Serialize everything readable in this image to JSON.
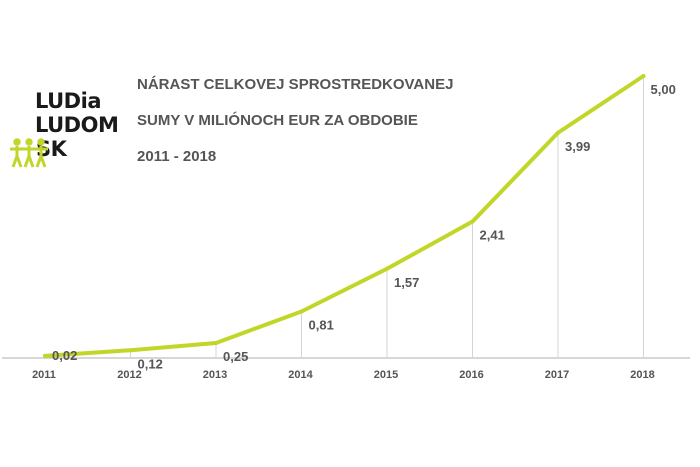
{
  "logo": {
    "lines": [
      "LUDia",
      "LUDOM",
      "SK"
    ]
  },
  "title": {
    "line1": "NÁRAST CELKOVEJ SPROSTREDKOVANEJ",
    "line2": "SUMY V MILIÓNOCH  EUR  ZA  OBDOBIE",
    "line3": "2011 - 2018"
  },
  "chart_data": {
    "type": "line",
    "title": "NÁRAST CELKOVEJ SPROSTREDKOVANEJ SUMY V MILIÓNOCH EUR ZA OBDOBIE 2011 - 2018",
    "categories": [
      "2011",
      "2012",
      "2013",
      "2014",
      "2015",
      "2016",
      "2017",
      "2018"
    ],
    "values": [
      0.02,
      0.12,
      0.25,
      0.81,
      1.57,
      2.41,
      3.99,
      5.0
    ],
    "value_labels": [
      "0,02",
      "0,12",
      "0,25",
      "0,81",
      "1,57",
      "2,41",
      "3,99",
      "5,00"
    ],
    "ylim": [
      0,
      5
    ],
    "grid": "vertical drop lines at each year",
    "legend": "none",
    "colors": {
      "line": "#c2d62a",
      "axis": "#bfbfbf",
      "text": "#555555"
    }
  },
  "colors": {
    "figure": "#c2d62a"
  }
}
